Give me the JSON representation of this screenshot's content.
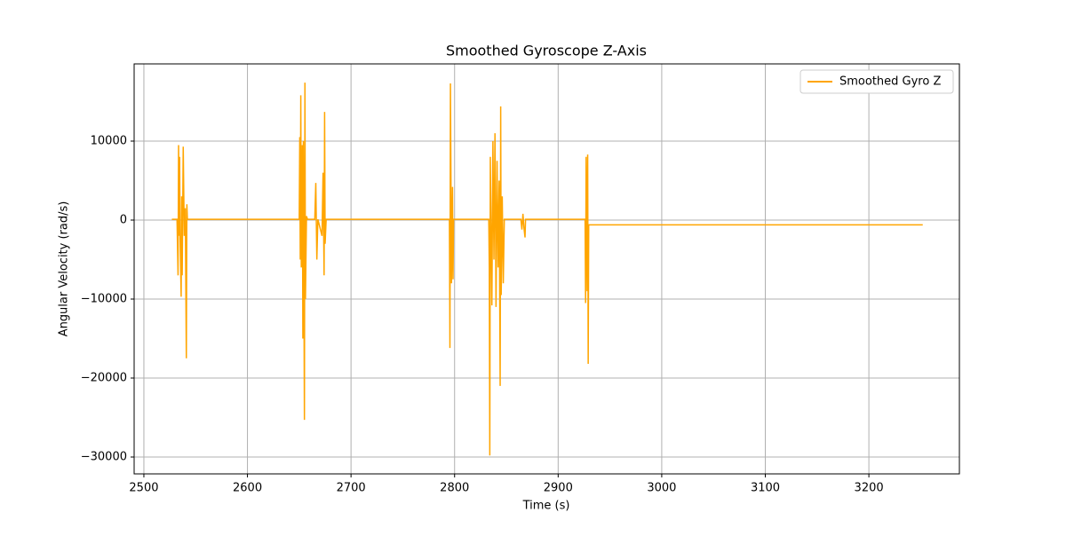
{
  "chart_data": {
    "type": "line",
    "title": "Smoothed Gyroscope Z-Axis",
    "x_label": "Time (s)",
    "y_label": "Angular Velocity (rad/s)",
    "x": [
      2527,
      2532,
      2533,
      2533.5,
      2534,
      2534.5,
      2535,
      2536,
      2536.5,
      2537,
      2538,
      2539,
      2540,
      2541,
      2541.5,
      2542,
      2650,
      2650.5,
      2651,
      2651.5,
      2652,
      2653,
      2653.5,
      2654,
      2655,
      2655.5,
      2656,
      2657,
      2658,
      2665,
      2666,
      2667,
      2668,
      2672,
      2673,
      2674,
      2674.5,
      2675,
      2676,
      2795,
      2795.5,
      2796,
      2797,
      2798,
      2798.5,
      2799,
      2833,
      2833.5,
      2834,
      2834.5,
      2836,
      2837,
      2838,
      2839,
      2840,
      2841,
      2842,
      2843,
      2844,
      2844.5,
      2845,
      2846,
      2847,
      2848,
      2864,
      2865,
      2866,
      2867,
      2868,
      2868.5,
      2926,
      2926.5,
      2927,
      2928,
      2928.5,
      2929,
      2929.5,
      3252
    ],
    "series": [
      {
        "name": "Smoothed Gyro Z",
        "color": "#ffa500",
        "values": [
          100,
          100,
          -7000,
          9500,
          -2000,
          8000,
          -2500,
          -9700,
          3000,
          -7000,
          9300,
          -2000,
          1500,
          -17500,
          2000,
          100,
          100,
          10500,
          -5000,
          15800,
          -6000,
          9500,
          -15000,
          10000,
          -25300,
          17400,
          -10000,
          500,
          100,
          100,
          4700,
          -5000,
          100,
          -2000,
          6000,
          -7000,
          13700,
          -3000,
          100,
          100,
          -16200,
          17300,
          -8000,
          4200,
          -7500,
          100,
          100,
          -6000,
          -29800,
          8000,
          -10800,
          10000,
          -5000,
          11000,
          -11000,
          7500,
          -6000,
          5000,
          -21000,
          14400,
          -9500,
          3000,
          -8000,
          100,
          100,
          -1200,
          800,
          -1000,
          -2200,
          100,
          100,
          -10500,
          8000,
          -9000,
          8300,
          -18200,
          -600,
          -600
        ]
      }
    ],
    "xlim": [
      2490.6,
      3287.4
    ],
    "ylim": [
      -32135,
      19775
    ],
    "xticks": [
      2500,
      2600,
      2700,
      2800,
      2900,
      3000,
      3100,
      3200
    ],
    "yticks": [
      {
        "value": -30000,
        "label": "−30000"
      },
      {
        "value": -20000,
        "label": "−20000"
      },
      {
        "value": -10000,
        "label": "−10000"
      },
      0,
      10000
    ],
    "grid": true,
    "legend": "upper right"
  }
}
